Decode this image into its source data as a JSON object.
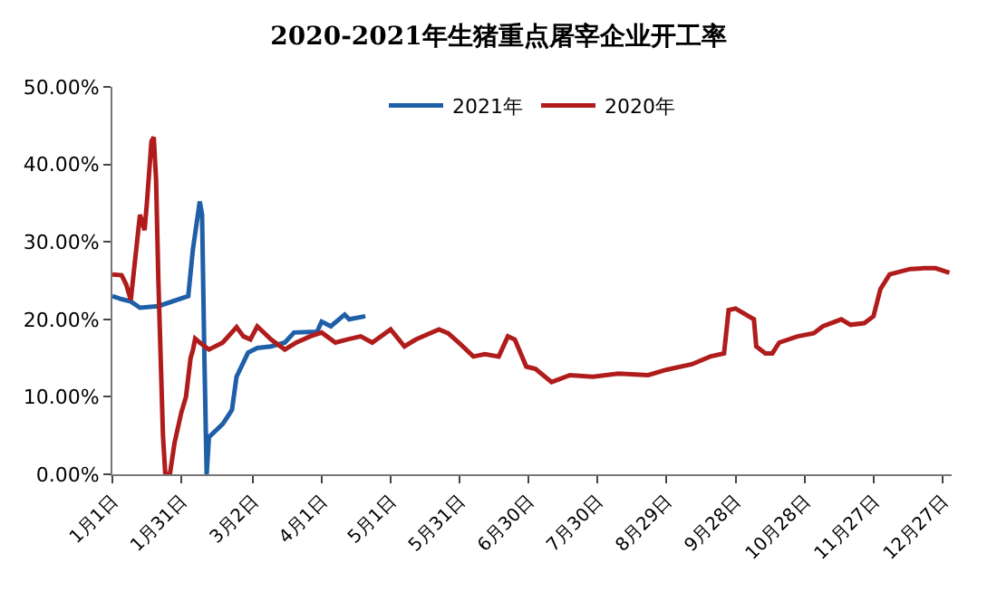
{
  "chart_data": {
    "type": "line",
    "title": "2020-2021年生猪重点屠宰企业开工率",
    "xlim": [
      "--01-01",
      "--12-31"
    ],
    "xticks": [
      {
        "value": "--01-01",
        "label": "1月1日"
      },
      {
        "value": "--01-31",
        "label": "1月31日"
      },
      {
        "value": "--03-02",
        "label": "3月2日"
      },
      {
        "value": "--04-01",
        "label": "4月1日"
      },
      {
        "value": "--05-01",
        "label": "5月1日"
      },
      {
        "value": "--05-31",
        "label": "5月31日"
      },
      {
        "value": "--06-30",
        "label": "6月30日"
      },
      {
        "value": "--07-30",
        "label": "7月30日"
      },
      {
        "value": "--08-29",
        "label": "8月29日"
      },
      {
        "value": "--09-28",
        "label": "9月28日"
      },
      {
        "value": "--10-28",
        "label": "10月28日"
      },
      {
        "value": "--11-27",
        "label": "11月27日"
      },
      {
        "value": "--12-27",
        "label": "12月27日"
      }
    ],
    "ylim": [
      0,
      50
    ],
    "yticks": [
      {
        "value": 0,
        "label": "0.00%"
      },
      {
        "value": 10,
        "label": "10.00%"
      },
      {
        "value": 20,
        "label": "20.00%"
      },
      {
        "value": 30,
        "label": "30.00%"
      },
      {
        "value": 40,
        "label": "40.00%"
      },
      {
        "value": 50,
        "label": "50.00%"
      }
    ],
    "grid": false,
    "legend": "top",
    "marker": "none",
    "line_style": "solid",
    "series": [
      {
        "name": "2021年",
        "color": "#1f5fa8",
        "x": [
          "--01-01",
          "--01-05",
          "--01-09",
          "--01-13",
          "--01-21",
          "--02-03",
          "--02-05",
          "--02-08",
          "--02-09",
          "--02-10",
          "--02-11",
          "--02-12",
          "--02-18",
          "--02-22",
          "--02-24",
          "--02-29",
          "--03-04",
          "--03-10",
          "--03-16",
          "--03-20",
          "--03-30",
          "--04-01",
          "--04-05",
          "--04-11",
          "--04-13",
          "--04-20"
        ],
        "values": [
          23,
          22.6,
          22.3,
          21.5,
          21.7,
          23,
          29,
          35.2,
          33.5,
          15.2,
          0,
          4.8,
          6.5,
          8.3,
          12.6,
          15.7,
          16.3,
          16.5,
          17,
          18.3,
          18.4,
          19.7,
          19.1,
          20.6,
          20,
          20.4
        ]
      },
      {
        "name": "2020年",
        "color": "#b01c1c",
        "x": [
          "--01-01",
          "--01-05",
          "--01-07",
          "--01-09",
          "--01-11",
          "--01-13",
          "--01-15",
          "--01-16",
          "--01-18",
          "--01-19",
          "--01-20",
          "--01-21",
          "--01-23",
          "--01-24",
          "--01-26",
          "--01-28",
          "--01-31",
          "--02-02",
          "--02-04",
          "--02-05",
          "--02-06",
          "--02-08",
          "--02-12",
          "--02-18",
          "--02-24",
          "--02-27",
          "--03-01",
          "--03-04",
          "--03-10",
          "--03-16",
          "--03-21",
          "--03-27",
          "--04-01",
          "--04-07",
          "--04-12",
          "--04-18",
          "--04-23",
          "--05-01",
          "--05-07",
          "--05-12",
          "--05-22",
          "--05-26",
          "--05-31",
          "--06-06",
          "--06-11",
          "--06-17",
          "--06-21",
          "--06-24",
          "--06-29",
          "--07-03",
          "--07-10",
          "--07-18",
          "--07-28",
          "--08-08",
          "--08-21",
          "--08-29",
          "--09-09",
          "--09-17",
          "--09-23",
          "--09-25",
          "--09-28",
          "--10-06",
          "--10-07",
          "--10-11",
          "--10-14",
          "--10-17",
          "--10-25",
          "--11-01",
          "--11-05",
          "--11-13",
          "--11-17",
          "--11-23",
          "--11-27",
          "--11-30",
          "--12-04",
          "--12-13",
          "--12-19",
          "--12-24",
          "--12-30"
        ],
        "values": [
          25.8,
          25.7,
          24.5,
          22.5,
          28,
          33.5,
          31.5,
          35,
          43,
          43.5,
          38,
          25,
          5,
          0,
          0,
          4,
          8,
          10,
          15,
          16,
          17.5,
          17,
          16.1,
          17,
          19,
          17.8,
          17.4,
          19.1,
          17.4,
          16.1,
          17,
          17.8,
          18.3,
          17,
          17.4,
          17.8,
          17,
          18.7,
          16.5,
          17.4,
          18.7,
          18.2,
          16.9,
          15.2,
          15.5,
          15.2,
          17.8,
          17.4,
          13.9,
          13.6,
          11.9,
          12.8,
          12.6,
          13,
          12.8,
          13.5,
          14.2,
          15.2,
          15.6,
          21.2,
          21.4,
          20,
          16.5,
          15.6,
          15.6,
          17,
          17.8,
          18.2,
          19.1,
          20,
          19.3,
          19.5,
          20.4,
          23.9,
          25.8,
          26.5,
          26.6,
          26.6,
          26
        ]
      }
    ]
  }
}
